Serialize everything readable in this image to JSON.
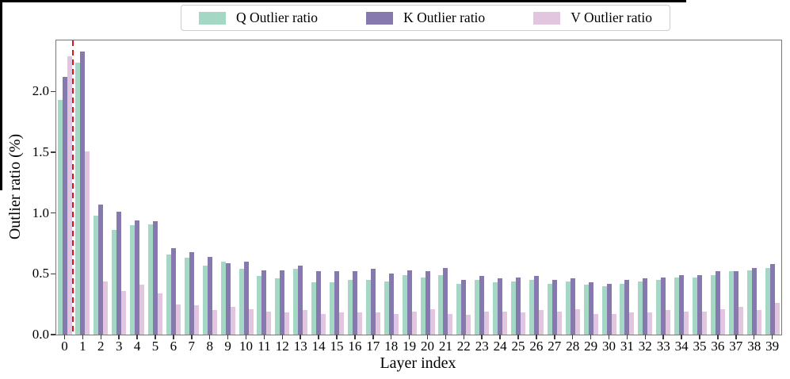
{
  "figure": {
    "x_axis_label": "Layer index",
    "y_axis_label": "Outlier ratio (%)"
  },
  "legend": {
    "items": [
      {
        "label": "Q Outlier ratio",
        "color": "#a5d7c5",
        "hatch": false
      },
      {
        "label": "K Outlier ratio",
        "color": "#8679ad",
        "hatch": false
      },
      {
        "label": "V Outlier ratio",
        "color": "#e2c6e0",
        "hatch": true
      }
    ]
  },
  "chart_data": {
    "type": "bar",
    "title": "",
    "xlabel": "Layer index",
    "ylabel": "Outlier ratio (%)",
    "categories": [
      "0",
      "1",
      "2",
      "3",
      "4",
      "5",
      "6",
      "7",
      "8",
      "9",
      "10",
      "11",
      "12",
      "13",
      "14",
      "15",
      "16",
      "17",
      "18",
      "19",
      "20",
      "21",
      "22",
      "23",
      "24",
      "25",
      "26",
      "27",
      "28",
      "29",
      "30",
      "31",
      "32",
      "33",
      "34",
      "35",
      "36",
      "37",
      "38",
      "39"
    ],
    "series": [
      {
        "name": "Q Outlier ratio",
        "color": "#a5d7c5",
        "hatch": false,
        "values": [
          1.93,
          2.24,
          0.98,
          0.86,
          0.9,
          0.91,
          0.66,
          0.63,
          0.57,
          0.6,
          0.54,
          0.48,
          0.46,
          0.54,
          0.43,
          0.43,
          0.45,
          0.45,
          0.44,
          0.49,
          0.47,
          0.49,
          0.42,
          0.45,
          0.43,
          0.44,
          0.45,
          0.42,
          0.44,
          0.41,
          0.4,
          0.42,
          0.44,
          0.45,
          0.47,
          0.47,
          0.49,
          0.52,
          0.53,
          0.55
        ]
      },
      {
        "name": "K Outlier ratio",
        "color": "#8679ad",
        "hatch": false,
        "values": [
          2.12,
          2.33,
          1.07,
          1.01,
          0.94,
          0.93,
          0.71,
          0.68,
          0.64,
          0.59,
          0.6,
          0.53,
          0.53,
          0.57,
          0.52,
          0.52,
          0.52,
          0.54,
          0.5,
          0.53,
          0.52,
          0.55,
          0.45,
          0.48,
          0.46,
          0.47,
          0.48,
          0.45,
          0.46,
          0.43,
          0.42,
          0.45,
          0.46,
          0.47,
          0.49,
          0.49,
          0.52,
          0.52,
          0.55,
          0.58
        ]
      },
      {
        "name": "V Outlier ratio",
        "color": "#e2c6e0",
        "hatch": true,
        "values": [
          2.29,
          1.51,
          0.44,
          0.36,
          0.41,
          0.34,
          0.25,
          0.24,
          0.2,
          0.23,
          0.21,
          0.19,
          0.18,
          0.2,
          0.17,
          0.18,
          0.18,
          0.18,
          0.17,
          0.19,
          0.21,
          0.17,
          0.16,
          0.19,
          0.19,
          0.18,
          0.2,
          0.19,
          0.21,
          0.17,
          0.17,
          0.18,
          0.18,
          0.2,
          0.19,
          0.19,
          0.21,
          0.23,
          0.2,
          0.26
        ]
      }
    ],
    "yticks": [
      0.0,
      0.5,
      1.0,
      1.5,
      2.0
    ],
    "ytick_labels": [
      "0.0",
      "0.5",
      "1.0",
      "1.5",
      "2.0"
    ],
    "ylim": [
      0,
      2.42
    ],
    "grid": false,
    "legend_position": "top-center",
    "annotations": [
      {
        "type": "vline",
        "x": 0.45,
        "style": "dashed",
        "color": "#ee0d0d"
      }
    ]
  }
}
